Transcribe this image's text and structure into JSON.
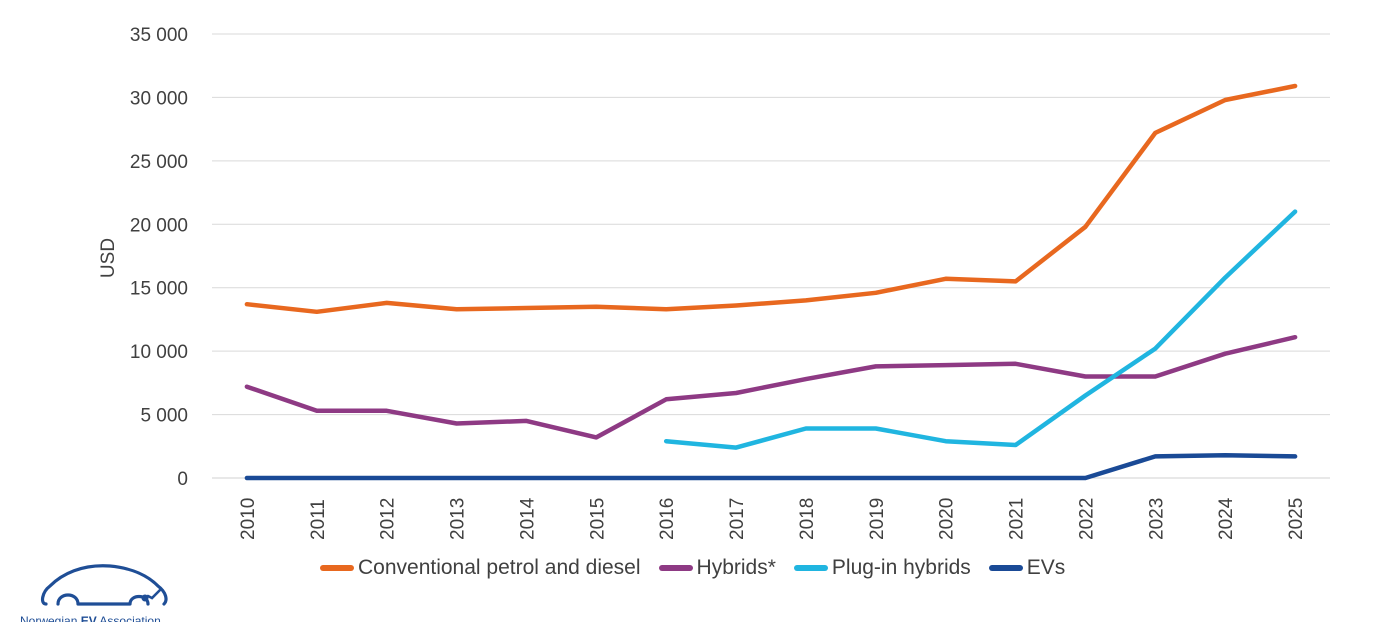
{
  "chart_data": {
    "type": "line",
    "title": "",
    "xlabel": "",
    "ylabel": "USD",
    "ylim": [
      0,
      35000
    ],
    "yticks": [
      0,
      5000,
      10000,
      15000,
      20000,
      25000,
      30000,
      35000
    ],
    "ytick_labels": [
      "0",
      "5 000",
      "10 000",
      "15 000",
      "20 000",
      "25 000",
      "30 000",
      "35 000"
    ],
    "categories": [
      "2010",
      "2011",
      "2012",
      "2013",
      "2014",
      "2015",
      "2016",
      "2017",
      "2018",
      "2019",
      "2020",
      "2021",
      "2022",
      "2023",
      "2024",
      "2025"
    ],
    "grid": "horizontal",
    "legend_position": "bottom",
    "series": [
      {
        "name": "Conventional petrol and diesel",
        "color": "#e8681f",
        "values": [
          13700,
          13100,
          13800,
          13300,
          13400,
          13500,
          13300,
          13600,
          14000,
          14600,
          15700,
          15500,
          19800,
          27200,
          29800,
          30900
        ]
      },
      {
        "name": "Hybrids*",
        "color": "#8e3a84",
        "values": [
          7200,
          5300,
          5300,
          4300,
          4500,
          3200,
          6200,
          6700,
          7800,
          8800,
          8900,
          9000,
          8000,
          8000,
          9800,
          11100
        ]
      },
      {
        "name": "Plug-in hybrids",
        "color": "#20b5e0",
        "values": [
          null,
          null,
          null,
          null,
          null,
          null,
          2900,
          2400,
          3900,
          3900,
          2900,
          2600,
          6500,
          10200,
          15800,
          21000
        ]
      },
      {
        "name": "EVs",
        "color": "#1a4a96",
        "values": [
          0,
          0,
          0,
          0,
          0,
          0,
          0,
          0,
          0,
          0,
          0,
          0,
          0,
          1700,
          1800,
          1700
        ]
      }
    ]
  },
  "logo": {
    "text_part1": "Norwegian ",
    "text_part2": "EV",
    "text_part3": " Association"
  }
}
